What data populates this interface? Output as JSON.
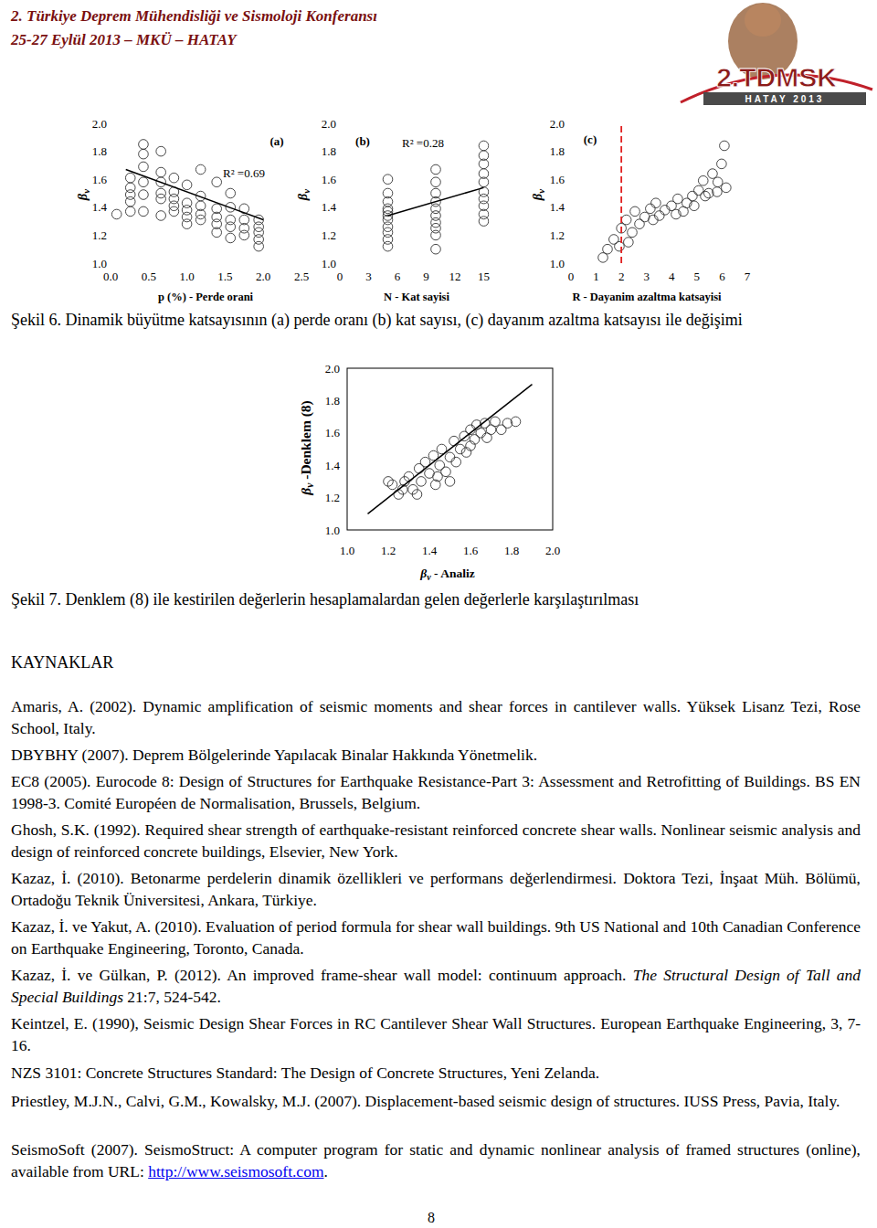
{
  "header": {
    "conference": "2. Türkiye Deprem Mühendisliği ve Sismoloji Konferansı",
    "dates": "25-27 Eylül 2013 – MKÜ – HATAY",
    "logo_title": "2.TDMSK",
    "logo_subtitle": "HATAY 2013"
  },
  "chart_data": [
    {
      "type": "scatter",
      "panel_label": "(a)",
      "annotation": "R² =0.69",
      "x_label": "p (%) - Perde orani",
      "y_label": {
        "symbol": "β",
        "subscript": "v"
      },
      "xlim": [
        0,
        2.5
      ],
      "ylim": [
        1,
        2
      ],
      "xticks": [
        {
          "value": 0,
          "label": "0.0"
        },
        {
          "value": 0.5,
          "label": "0.5"
        },
        {
          "value": 1,
          "label": "1.0"
        },
        {
          "value": 1.5,
          "label": "1.5"
        },
        {
          "value": 2,
          "label": "2.0"
        },
        {
          "value": 2.5,
          "label": "2.5"
        }
      ],
      "yticks": [
        {
          "value": 1,
          "label": "1.0"
        },
        {
          "value": 1.2,
          "label": "1.2"
        },
        {
          "value": 1.4,
          "label": "1.4"
        },
        {
          "value": 1.6,
          "label": "1.6"
        },
        {
          "value": 1.8,
          "label": "1.8"
        },
        {
          "value": 2,
          "label": "2.0"
        }
      ],
      "grid": false,
      "series": [
        {
          "type": "scatter",
          "marker": "circle",
          "color": "#333333",
          "x": [
            0.26,
            0.26,
            0.26,
            0.26,
            0.26,
            0.43,
            0.43,
            0.43,
            0.43,
            0.43,
            0.43,
            0.66,
            0.66,
            0.66,
            0.66,
            0.66,
            0.66,
            0.83,
            0.83,
            0.83,
            0.83,
            0.83,
            1.0,
            1.0,
            1.0,
            1.0,
            1.0,
            1.18,
            1.18,
            1.18,
            1.18,
            1.18,
            1.39,
            1.39,
            1.39,
            1.39,
            1.39,
            1.57,
            1.57,
            1.57,
            1.57,
            1.57,
            1.75,
            1.75,
            1.75,
            1.75,
            1.94,
            1.94,
            1.94,
            1.94,
            1.94,
            0.08
          ],
          "values": [
            1.61,
            1.54,
            1.49,
            1.44,
            1.37,
            1.85,
            1.78,
            1.69,
            1.58,
            1.49,
            1.37,
            1.8,
            1.65,
            1.58,
            1.5,
            1.46,
            1.34,
            1.61,
            1.51,
            1.46,
            1.41,
            1.37,
            1.56,
            1.43,
            1.38,
            1.33,
            1.28,
            1.67,
            1.48,
            1.41,
            1.35,
            1.31,
            1.58,
            1.39,
            1.33,
            1.28,
            1.22,
            1.5,
            1.4,
            1.31,
            1.26,
            1.18,
            1.39,
            1.31,
            1.25,
            1.2,
            1.31,
            1.26,
            1.22,
            1.17,
            1.12,
            1.35
          ]
        },
        {
          "type": "line",
          "line_style": "solid",
          "color": "#000000",
          "x": [
            0.2,
            2.0
          ],
          "values": [
            1.67,
            1.31
          ]
        }
      ]
    },
    {
      "type": "scatter",
      "panel_label": "(b)",
      "annotation": "R² =0.28",
      "x_label": "N - Kat sayisi",
      "y_label": {
        "symbol": "β",
        "subscript": "v"
      },
      "xlim": [
        0,
        15
      ],
      "ylim": [
        1,
        2
      ],
      "xticks": [
        0,
        3,
        6,
        9,
        12,
        15
      ],
      "yticks": [
        {
          "value": 1,
          "label": "1.0"
        },
        {
          "value": 1.2,
          "label": "1.2"
        },
        {
          "value": 1.4,
          "label": "1.4"
        },
        {
          "value": 1.6,
          "label": "1.6"
        },
        {
          "value": 1.8,
          "label": "1.8"
        },
        {
          "value": 2,
          "label": "2.0"
        }
      ],
      "grid": false,
      "series": [
        {
          "type": "scatter",
          "marker": "circle",
          "color": "#333333",
          "x": [
            5,
            5,
            5,
            5,
            5,
            5,
            5,
            5,
            5,
            5,
            5,
            10,
            10,
            10,
            10,
            10,
            10,
            10,
            10,
            10,
            10,
            15,
            15,
            15,
            15,
            15,
            15,
            15,
            15,
            15,
            15
          ],
          "values": [
            1.6,
            1.5,
            1.44,
            1.39,
            1.37,
            1.34,
            1.31,
            1.26,
            1.22,
            1.17,
            1.12,
            1.67,
            1.58,
            1.5,
            1.44,
            1.39,
            1.34,
            1.29,
            1.25,
            1.2,
            1.1,
            1.84,
            1.77,
            1.71,
            1.64,
            1.58,
            1.51,
            1.46,
            1.41,
            1.35,
            1.3
          ]
        },
        {
          "type": "line",
          "line_style": "solid",
          "color": "#000000",
          "x": [
            5,
            15
          ],
          "values": [
            1.34,
            1.54
          ]
        }
      ]
    },
    {
      "type": "scatter",
      "panel_label": "(c)",
      "x_label": "R - Dayanim azaltma katsayisi",
      "y_label": {
        "symbol": "β",
        "subscript": "v"
      },
      "xlim": [
        0,
        7
      ],
      "ylim": [
        1,
        2
      ],
      "xticks": [
        0,
        1,
        2,
        3,
        4,
        5,
        6,
        7
      ],
      "yticks": [
        {
          "value": 1,
          "label": "1.0"
        },
        {
          "value": 1.2,
          "label": "1.2"
        },
        {
          "value": 1.4,
          "label": "1.4"
        },
        {
          "value": 1.6,
          "label": "1.6"
        },
        {
          "value": 1.8,
          "label": "1.8"
        },
        {
          "value": 2,
          "label": "2.0"
        }
      ],
      "grid": false,
      "series": [
        {
          "type": "scatter",
          "marker": "circle",
          "color": "#333333",
          "x": [
            1.27,
            1.45,
            1.7,
            2.0,
            2.2,
            2.43,
            2.72,
            2.54,
            2.93,
            3.15,
            3.37,
            3.51,
            3.73,
            3.99,
            4.24,
            4.46,
            4.6,
            4.82,
            5.07,
            5.25,
            5.47,
            5.62,
            5.83,
            5.98,
            6.09,
            6.16,
            1.92,
            2.28,
            3.26,
            4.17,
            4.89,
            5.33,
            5.8
          ],
          "values": [
            1.04,
            1.1,
            1.17,
            1.25,
            1.31,
            1.22,
            1.28,
            1.37,
            1.33,
            1.39,
            1.43,
            1.34,
            1.38,
            1.41,
            1.46,
            1.37,
            1.43,
            1.48,
            1.52,
            1.59,
            1.5,
            1.64,
            1.58,
            1.71,
            1.84,
            1.54,
            1.12,
            1.15,
            1.31,
            1.35,
            1.41,
            1.48,
            1.51
          ]
        },
        {
          "type": "line",
          "line_style": "dashed",
          "color": "#e02020",
          "x": [
            2,
            2
          ],
          "values": [
            1,
            2
          ]
        }
      ]
    },
    {
      "type": "scatter",
      "x_label": {
        "symbol": "β",
        "subscript": "v",
        "text": " - Analiz"
      },
      "y_label": {
        "symbol": "β",
        "subscript": "v",
        "text": " -Denklem (8)"
      },
      "xlim": [
        1,
        2
      ],
      "ylim": [
        1,
        2
      ],
      "xticks": [
        {
          "value": 1,
          "label": "1.0"
        },
        {
          "value": 1.2,
          "label": "1.2"
        },
        {
          "value": 1.4,
          "label": "1.4"
        },
        {
          "value": 1.6,
          "label": "1.6"
        },
        {
          "value": 1.8,
          "label": "1.8"
        },
        {
          "value": 2,
          "label": "2.0"
        }
      ],
      "yticks": [
        {
          "value": 1,
          "label": "1.0"
        },
        {
          "value": 1.2,
          "label": "1.2"
        },
        {
          "value": 1.4,
          "label": "1.4"
        },
        {
          "value": 1.6,
          "label": "1.6"
        },
        {
          "value": 1.8,
          "label": "1.8"
        },
        {
          "value": 2,
          "label": "2.0"
        }
      ],
      "grid": false,
      "series": [
        {
          "type": "scatter",
          "marker": "circle",
          "color": "#333333",
          "x": [
            1.2,
            1.22,
            1.25,
            1.28,
            1.3,
            1.32,
            1.35,
            1.36,
            1.38,
            1.4,
            1.42,
            1.43,
            1.45,
            1.46,
            1.48,
            1.5,
            1.52,
            1.53,
            1.55,
            1.57,
            1.6,
            1.6,
            1.62,
            1.63,
            1.65,
            1.67,
            1.7,
            1.72,
            1.75,
            1.78,
            1.82,
            1.27,
            1.34,
            1.44,
            1.5,
            1.58,
            1.68
          ],
          "values": [
            1.3,
            1.28,
            1.22,
            1.3,
            1.33,
            1.25,
            1.38,
            1.3,
            1.42,
            1.35,
            1.46,
            1.28,
            1.4,
            1.5,
            1.36,
            1.45,
            1.55,
            1.42,
            1.5,
            1.58,
            1.52,
            1.62,
            1.56,
            1.65,
            1.6,
            1.66,
            1.62,
            1.67,
            1.62,
            1.66,
            1.67,
            1.25,
            1.22,
            1.33,
            1.3,
            1.48,
            1.57
          ]
        },
        {
          "type": "line",
          "line_style": "solid",
          "color": "#000000",
          "x": [
            1.1,
            1.9
          ],
          "values": [
            1.1,
            1.9
          ]
        }
      ]
    }
  ],
  "captions": [
    "Şekil 6. Dinamik büyütme katsayısının (a) perde oranı (b) kat sayısı, (c) dayanım azaltma katsayısı ile değişimi",
    "Şekil 7. Denklem (8) ile kestirilen değerlerin hesaplamalardan gelen değerlerle karşılaştırılması"
  ],
  "references_title": "KAYNAKLAR",
  "references": [
    {
      "segments": [
        {
          "text": "Amaris, A. (2002).",
          "style": "normal"
        },
        {
          "text": " Dynamic amplification of seismic moments and shear forces in cantilever walls. Yüksek Lisanz Tezi, Rose School, Italy.",
          "style": "normal"
        }
      ]
    },
    {
      "segments": [
        {
          "text": "DBYBHY (2007).",
          "style": "normal"
        },
        {
          "text": " Deprem Bölgelerinde Yapılacak Binalar Hakkında Yönetmelik.",
          "style": "normal"
        }
      ]
    },
    {
      "segments": [
        {
          "text": "EC8 (2005).",
          "style": "normal"
        },
        {
          "text": " Eurocode 8: Design of Structures for Earthquake Resistance-Part 3: Assessment and Retrofitting of Buildings. BS EN 1998-3. Comité Européen de Normalisation, Brussels, Belgium.",
          "style": "normal"
        }
      ]
    },
    {
      "segments": [
        {
          "text": "Ghosh, S.K. (1992).",
          "style": "normal"
        },
        {
          "text": " Required shear strength of earthquake-resistant reinforced concrete shear walls. Nonlinear seismic analysis and design of reinforced concrete buildings, Elsevier, New York.",
          "style": "normal"
        }
      ]
    },
    {
      "segments": [
        {
          "text": "Kazaz, İ. (2010).",
          "style": "normal"
        },
        {
          "text": " Betonarme perdelerin dinamik özellikleri ve performans değerlendirmesi. Doktora Tezi, İnşaat Müh. Bölümü, Ortadoğu Teknik Üniversitesi, Ankara, Türkiye.",
          "style": "normal"
        }
      ]
    },
    {
      "segments": [
        {
          "text": "Kazaz, İ. ve Yakut, A. (2010).",
          "style": "normal"
        },
        {
          "text": " Evaluation of period formula for shear wall buildings. 9th US National and 10th Canadian Conference on Earthquake Engineering, Toronto, Canada.",
          "style": "normal"
        }
      ]
    },
    {
      "segments": [
        {
          "text": "Kazaz, İ. ve Gülkan, P. (2012).",
          "style": "normal"
        },
        {
          "text": " An improved frame-shear wall model: continuum approach. ",
          "style": "normal"
        },
        {
          "text": "The Structural Design of Tall and Special Buildings",
          "style": "italic"
        },
        {
          "text": " 21:7, 524-542.",
          "style": "normal"
        }
      ]
    },
    {
      "segments": [
        {
          "text": "Keintzel, E. (1990),",
          "style": "normal"
        },
        {
          "text": " Seismic Design Shear Forces in RC Cantilever Shear Wall Structures. European Earthquake Engineering, 3, 7-16.",
          "style": "normal"
        }
      ]
    },
    {
      "segments": [
        {
          "text": "NZS 3101:",
          "style": "normal"
        },
        {
          "text": " Concrete Structures Standard: The Design of Concrete Structures, Yeni Zelanda.",
          "style": "normal"
        }
      ]
    },
    {
      "segments": [
        {
          "text": "Priestley, M.J.N., Calvi, G.M., Kowalsky, M.J. (2007).",
          "style": "normal"
        },
        {
          "text": " Displacement-based seismic design of structures. IUSS Press, Pavia, Italy.",
          "style": "normal"
        }
      ]
    },
    {
      "segments": [
        {
          "text": "SeismoSoft (2007).",
          "style": "normal"
        },
        {
          "text": " SeismoStruct: A computer program for static and dynamic nonlinear analysis of framed structures (online), available from URL: ",
          "style": "normal"
        },
        {
          "text": "http://www.seismosoft.com",
          "style": "link"
        },
        {
          "text": ".",
          "style": "normal"
        }
      ]
    }
  ],
  "page_number": "8"
}
